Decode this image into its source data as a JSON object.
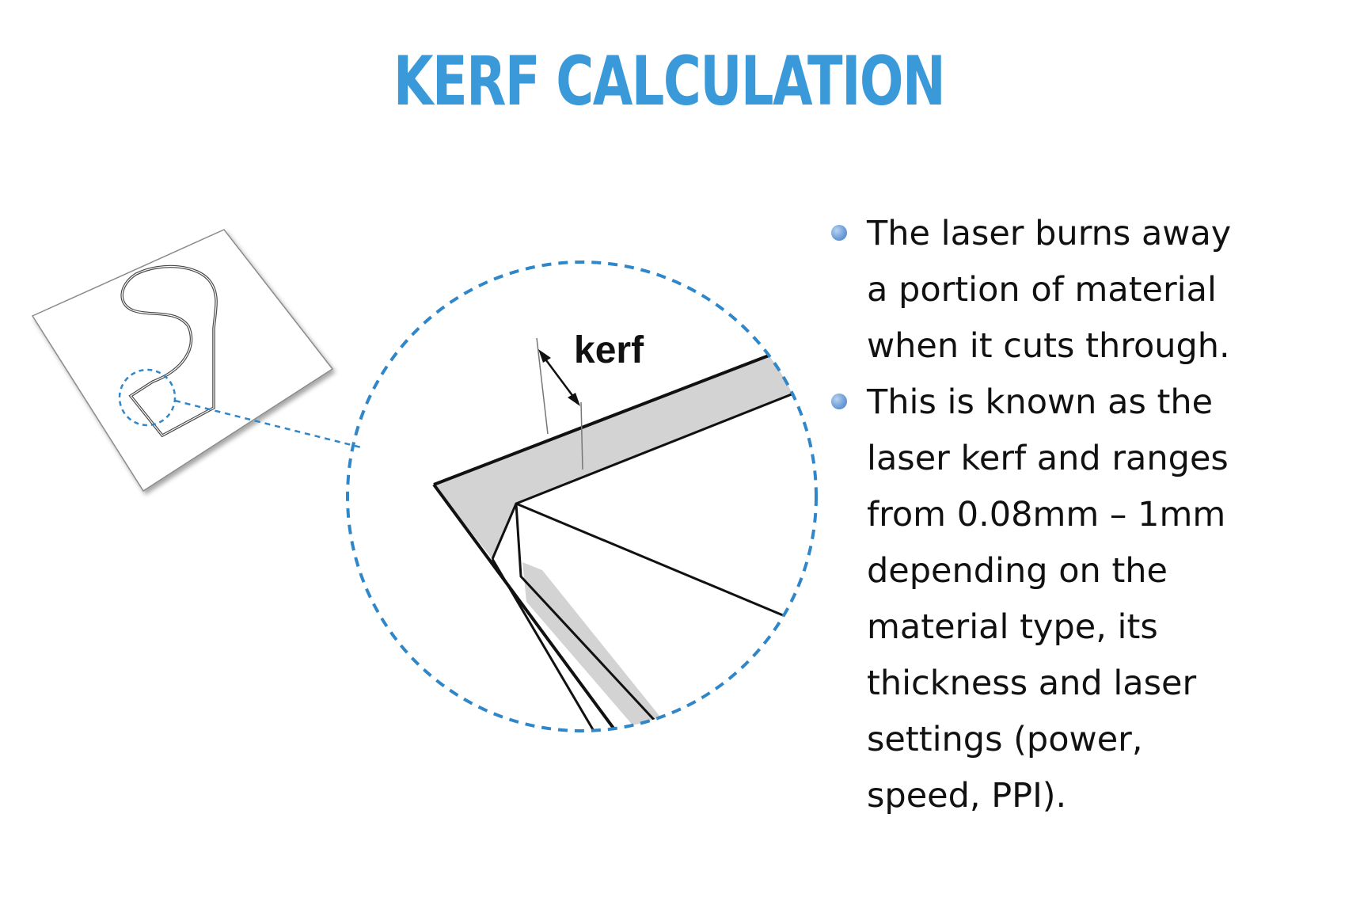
{
  "slide": {
    "title": "KERF CALCULATION",
    "title_color": "#3a9ad9"
  },
  "figure": {
    "kerf_label": "kerf",
    "accent_color": "#2f86c8",
    "kerf_fill_color": "#d3d3d3"
  },
  "bullets": [
    {
      "lines": [
        "The laser burns away",
        "a portion of material",
        "when it cuts through."
      ]
    },
    {
      "lines": [
        "This is known as the",
        "laser kerf and ranges",
        "from 0.08mm – 1mm",
        "depending on the",
        "material type, its",
        "thickness and laser",
        "settings (power,",
        "speed, PPI)."
      ]
    }
  ]
}
